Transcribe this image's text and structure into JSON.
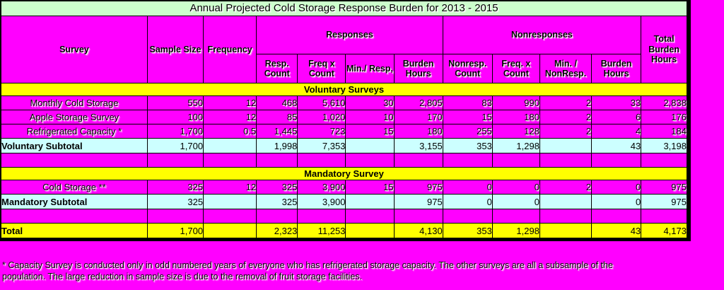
{
  "page": {
    "background_color": "#ff00ff"
  },
  "table": {
    "title": "Annual Projected Cold Storage Response Burden for 2013 - 2015",
    "colors": {
      "title_band": "#ccffcc",
      "cell_magenta": "#ff00ff",
      "section_band": "#ffff00",
      "subtotal_band": "#ccffff",
      "total_band": "#ffff00",
      "border": "#000000"
    },
    "header": {
      "survey": "Survey",
      "sample_size": "Sample Size",
      "frequency": "Frequency",
      "responses_group": "Responses",
      "nonresponses_group": "Nonresponses",
      "total_burden": "Total Burden Hours",
      "sub": [
        "Resp. Count",
        "Freq x Count",
        "Min./ Resp,",
        "Burden Hours",
        "Nonresp. Count",
        "Freq. x Count",
        "Min. / NonResp.",
        "Burden Hours"
      ]
    },
    "rows": [
      {
        "type": "section",
        "label": "Voluntary Surveys"
      },
      {
        "type": "data",
        "label": "Monthly Cold Storage",
        "cells": [
          "550",
          "12",
          "468",
          "5,610",
          "30",
          "2,805",
          "83",
          "990",
          "2",
          "33",
          "2,838"
        ]
      },
      {
        "type": "data",
        "label": "Apple Storage Survey",
        "cells": [
          "100",
          "12",
          "85",
          "1,020",
          "10",
          "170",
          "15",
          "180",
          "2",
          "6",
          "176"
        ]
      },
      {
        "type": "data",
        "label": "Refrigerated Capacity *",
        "cells": [
          "1,700",
          "0.5",
          "1,445",
          "723",
          "15",
          "180",
          "255",
          "128",
          "2",
          "4",
          "184"
        ]
      },
      {
        "type": "subtotal",
        "label": "Voluntary Subtotal",
        "cells": [
          "1,700",
          "",
          "1,998",
          "7,353",
          "",
          "3,155",
          "353",
          "1,298",
          "",
          "43",
          "3,198"
        ]
      },
      {
        "type": "blank"
      },
      {
        "type": "section",
        "label": "Mandatory Survey"
      },
      {
        "type": "data",
        "label": "Cold Storage **",
        "cells": [
          "325",
          "12",
          "325",
          "3,900",
          "15",
          "975",
          "0",
          "0",
          "2",
          "0",
          "975"
        ]
      },
      {
        "type": "subtotal",
        "label": "Mandatory Subtotal",
        "cells": [
          "325",
          "",
          "325",
          "3,900",
          "",
          "975",
          "0",
          "0",
          "",
          "0",
          "975"
        ]
      },
      {
        "type": "blank"
      },
      {
        "type": "total",
        "label": "Total",
        "cells": [
          "1,700",
          "",
          "2,323",
          "11,253",
          "",
          "4,130",
          "353",
          "1,298",
          "",
          "43",
          "4,173"
        ]
      }
    ]
  },
  "footnote": {
    "lines": [
      "* Capacity Survey is conducted only in odd numbered years of everyone who has refrigerated storage capacity.  The other surveys are all a subsample of the",
      "population.  The large reduction in sample size is due to the removal of fruit storage facilities."
    ]
  }
}
